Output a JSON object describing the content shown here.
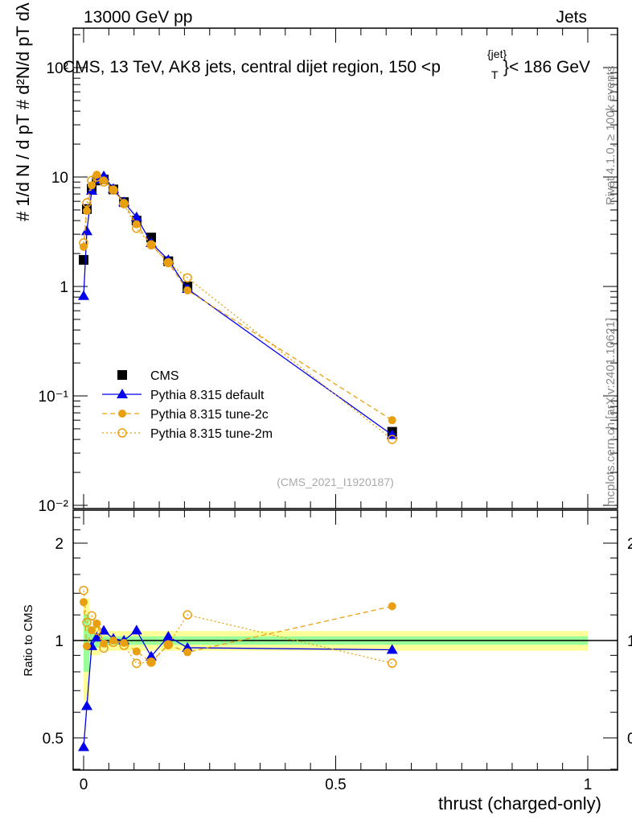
{
  "header": {
    "left": "13000 GeV pp",
    "right": "Jets"
  },
  "side_labels": {
    "rivet": "Rivet 4.1.0, ≥ 100k events",
    "mcplots": "mcplots.cern.ch [arXiv:2401.10621]"
  },
  "chart_data": {
    "type": "line",
    "title": "CMS, 13 TeV, AK8 jets, central dijet region, 150 < p_T^{jet} < 186 GeV",
    "title_parts": {
      "main": "CMS, 13 TeV, AK8 jets, central dijet region, 150 <p",
      "sub": "T",
      "sup": "{jet}",
      "tail": "}< 186 GeV"
    },
    "ylabel": "1/(dN/dp_T) d²N/(dp_T dλ)",
    "ylabel_parts": {
      "a": "#",
      "b": "1",
      "c": "d N / d p",
      "d": "T",
      "e": "#",
      "f": "d²N",
      "g": "d p",
      "h": "T",
      "i": "dλ",
      "j": "#"
    },
    "xlabel": "thrust (charged-only)",
    "ratio_ylabel": "Ratio to CMS",
    "watermark": "(CMS_2021_I1920187)",
    "xlim": [
      0,
      1
    ],
    "ylim": [
      0.01,
      200
    ],
    "yscale": "log",
    "ratio_ylim": [
      0.4,
      2.4
    ],
    "x_ticks": [
      {
        "v": 0,
        "l": "0"
      },
      {
        "v": 0.5,
        "l": "0.5"
      },
      {
        "v": 1,
        "l": "1"
      }
    ],
    "y_ticks": [
      {
        "v": 0.01,
        "l": "10⁻²"
      },
      {
        "v": 0.1,
        "l": "10⁻¹"
      },
      {
        "v": 1,
        "l": "1"
      },
      {
        "v": 10,
        "l": "10"
      },
      {
        "v": 100,
        "l": "10²"
      }
    ],
    "ratio_ticks": [
      {
        "v": 0.5,
        "l": "0.5"
      },
      {
        "v": 1,
        "l": "1"
      },
      {
        "v": 2,
        "l": "2"
      }
    ],
    "legend_position": "center-left",
    "x": [
      0.0,
      0.0064,
      0.016,
      0.026,
      0.04,
      0.059,
      0.08,
      0.105,
      0.134,
      0.168,
      0.206,
      0.612
    ],
    "series": [
      {
        "name": "CMS",
        "color": "#000000",
        "marker": "square",
        "values": [
          1.75,
          5.1,
          7.8,
          9.3,
          9.5,
          7.7,
          5.9,
          4.0,
          2.8,
          1.7,
          1.0,
          0.047
        ]
      },
      {
        "name": "Pythia 8.315 default",
        "color": "#0000ee",
        "marker": "triangle",
        "line": "solid",
        "values": [
          0.82,
          3.2,
          7.5,
          9.5,
          10.2,
          7.8,
          5.9,
          4.3,
          2.5,
          1.75,
          0.95,
          0.044
        ]
      },
      {
        "name": "Pythia 8.315 tune-2c",
        "color": "#e8a010",
        "marker": "circle",
        "line": "dashed",
        "values": [
          2.3,
          4.9,
          8.4,
          10.5,
          9.3,
          7.7,
          5.8,
          3.7,
          2.4,
          1.65,
          0.92,
          0.06
        ]
      },
      {
        "name": "Pythia 8.315 tune-2m",
        "color": "#e8a010",
        "marker": "open-circle",
        "line": "dotted",
        "values": [
          2.5,
          5.8,
          9.3,
          10.0,
          9.0,
          7.6,
          5.7,
          3.4,
          2.4,
          1.65,
          1.2,
          0.04
        ]
      }
    ],
    "band_colors": {
      "inner": "#99ff99",
      "outer": "#ffff99"
    }
  }
}
